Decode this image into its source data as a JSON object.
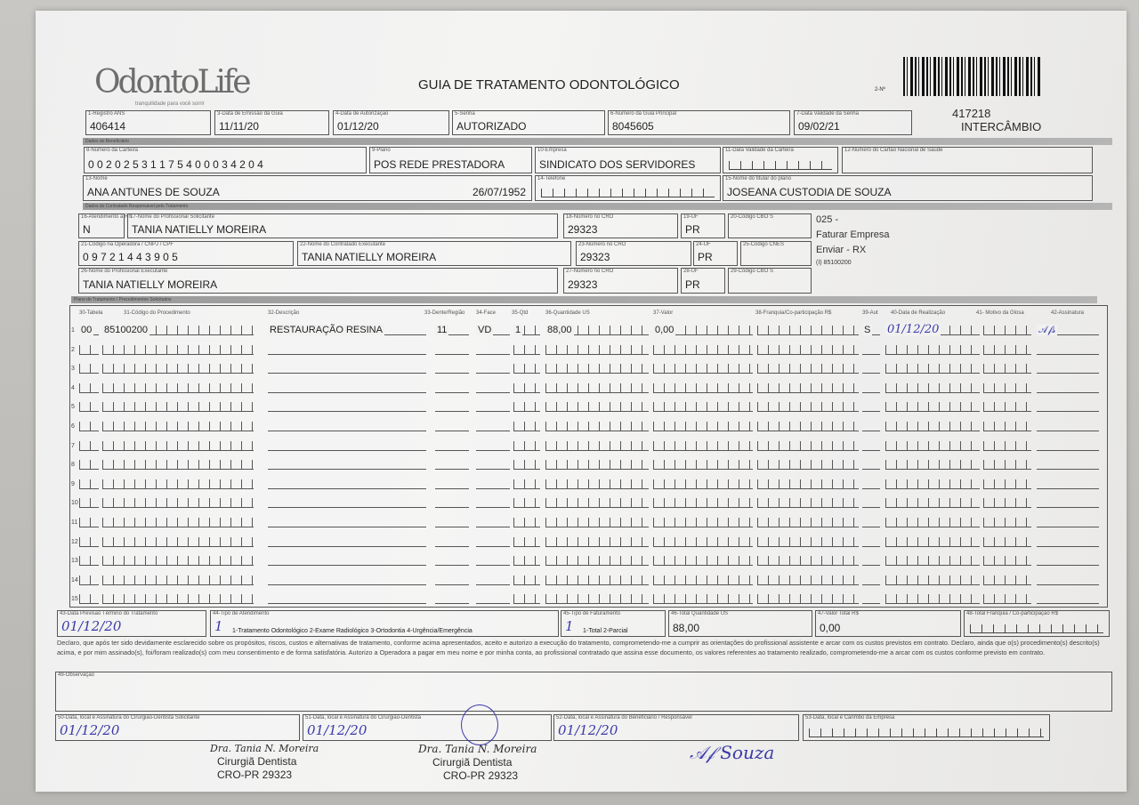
{
  "header": {
    "logo": "OdontoLife",
    "logo_tagline": "tranquilidade para você sorrir",
    "title": "GUIA DE TRATAMENTO ODONTOLÓGICO",
    "guide_number_label": "2-Nº",
    "guide_number": "417218",
    "guide_type": "INTERCÂMBIO"
  },
  "sections": {
    "beneficiario": "Dados do Beneficiário",
    "contratado": "Dados do Contratado Responsável pelo Tratamento",
    "plano": "Plano de Tratamento / Procedimentos Solicitados"
  },
  "fields": {
    "f1": {
      "label": "1-Registro ANS",
      "value": "406414"
    },
    "f3": {
      "label": "3-Data de Emissão da Guia",
      "value": "11/11/20"
    },
    "f4": {
      "label": "4-Data de Autorização",
      "value": "01/12/20"
    },
    "f5": {
      "label": "5-Senha",
      "value": "AUTORIZADO"
    },
    "f6": {
      "label": "6-Número da Guia Principal",
      "value": "8045605"
    },
    "f7": {
      "label": "7-Data Validade da Senha",
      "value": "09/02/21"
    },
    "f8": {
      "label": "8-Número da Carteira",
      "value": "0 0 2 0 2 5 3 1 1 7 5 4 0 0 0 3 4 2 0 4"
    },
    "f9": {
      "label": "9-Plano",
      "value": "POS REDE PRESTADORA"
    },
    "f10": {
      "label": "10-Empresa",
      "value": "SINDICATO DOS SERVIDORES"
    },
    "f11": {
      "label": "11-Data Validade da Carteira",
      "value": ""
    },
    "f12": {
      "label": "12-Número do Cartão Nacional de Saúde",
      "value": ""
    },
    "f13": {
      "label": "13-Nome",
      "value": "ANA ANTUNES DE SOUZA",
      "extra": "26/07/1952"
    },
    "f14": {
      "label": "14-Telefone",
      "value": ""
    },
    "f15": {
      "label": "15-Nome do titular do plano",
      "value": "JOSEANA CUSTODIA DE SOUZA"
    },
    "f16": {
      "label": "16-Atendimento a RN",
      "value": "N"
    },
    "f17": {
      "label": "17-Nome do Profissional Solicitante",
      "value": "TANIA NATIELLY MOREIRA"
    },
    "f18": {
      "label": "18-Número no CRO",
      "value": "29323"
    },
    "f19": {
      "label": "19-UF",
      "value": "PR"
    },
    "f20": {
      "label": "20-Código CBO S",
      "value": ""
    },
    "f21": {
      "label": "21-Código na Operadora / CNPJ / CPF",
      "value": "0 9 7 2 1 4 4 3 9 0 5"
    },
    "f22": {
      "label": "22-Nome do Contratado Executante",
      "value": "TANIA NATIELLY MOREIRA"
    },
    "f23": {
      "label": "23-Número no CRO",
      "value": "29323"
    },
    "f24": {
      "label": "24-UF",
      "value": "PR"
    },
    "f25": {
      "label": "25-Código CNES",
      "value": ""
    },
    "f26": {
      "label": "26-Nome do Profissional Executante",
      "value": "TANIA NATIELLY MOREIRA"
    },
    "f27": {
      "label": "27-Número no CRO",
      "value": "29323"
    },
    "f28": {
      "label": "28-UF",
      "value": "PR"
    },
    "f29": {
      "label": "29-Código CBO S",
      "value": ""
    },
    "f43": {
      "label": "43-Data Previsão Término do Tratamento",
      "value": "01/12/20"
    },
    "f44": {
      "label": "44-Tipo de Atendimento",
      "value": "1",
      "extra": "1-Tratamento Odontológico  2-Exame Radiológico  3-Ortodontia  4-Urgência/Emergência"
    },
    "f45": {
      "label": "45-Tipo de Faturamento",
      "value": "1",
      "extra": "1-Total  2-Parcial"
    },
    "f46": {
      "label": "46-Total Quantidade US",
      "value": "88,00"
    },
    "f47": {
      "label": "47-Valor Total R$",
      "value": "0,00"
    },
    "f48": {
      "label": "48-Total Franquia / Co-participação R$",
      "value": ""
    },
    "f49": {
      "label": "49-Observação",
      "value": ""
    },
    "f50": {
      "label": "50-Data, local e Assinatura do Cirurgião-Dentista Solicitante",
      "value": "01/12/20"
    },
    "f51": {
      "label": "51-Data, local e Assinatura do Cirurgião-Dentista",
      "value": "01/12/20"
    },
    "f52": {
      "label": "52-Data, local e Assinatura do Beneficiário / Responsável",
      "value": "01/12/20"
    },
    "f53": {
      "label": "53-Data, local e Carimbo da Empresa",
      "value": ""
    }
  },
  "side_notes": [
    "025 -",
    "Faturar Empresa",
    "Enviar - RX",
    "(I) 85100200"
  ],
  "table": {
    "headers": [
      "30-Tabela",
      "31-Código do Procedimento",
      "32-Descrição",
      "33-Dente/Região",
      "34-Face",
      "35-Qtd",
      "36-Quantidade US",
      "37-Valor",
      "38-Franquia/Co-participação R$",
      "39-Aut",
      "40-Data de Realização",
      "41- Motivo da Glosa",
      "42-Assinatura"
    ],
    "row_numbers": [
      "1",
      "2",
      "3",
      "4",
      "5",
      "6",
      "7",
      "8",
      "9",
      "10",
      "11",
      "12",
      "13",
      "14",
      "15"
    ],
    "rows": [
      {
        "tabela": "00",
        "codigo": "85100200",
        "descricao": "RESTAURAÇÃO RESINA",
        "dente": "11",
        "face": "VD",
        "qtd": "1",
        "qtd_us": "88,00",
        "valor": "0,00",
        "franquia": "",
        "aut": "S",
        "data": "01/12/20",
        "motivo": "",
        "assinatura": "signature"
      }
    ]
  },
  "declaration": "Declaro, que após ter sido devidamente esclarecido sobre os propósitos, riscos, custos e alternativas de tratamento, conforme acima apresentados, aceito e autorizo a execução do tratamento, comprometendo-me a cumprir as orientações do profissional assistente e arcar com os custos previstos em contrato. Declaro, ainda que o(s) procedimento(s) descrito(s) acima, e por mim assinado(s), foi/foram realizado(s) com meu consentimento e de forma satisfatória. Autorizo a Operadora a pagar em meu nome e por minha conta, ao profissional contratado que assina esse documento, os valores referentes ao tratamento realizado, comprometendo-me a arcar com os custos conforme previsto em contrato.",
  "stamps": [
    {
      "name": "Dra. Tania N. Moreira",
      "role": "Cirurgiã Dentista",
      "cro": "CRO-PR 29323"
    },
    {
      "name": "Dra. Tania N. Moreira",
      "role": "Cirurgiã Dentista",
      "cro": "CRO-PR 29323"
    }
  ],
  "colors": {
    "ink": "#3b3aa8",
    "print": "#2a2a2a"
  }
}
